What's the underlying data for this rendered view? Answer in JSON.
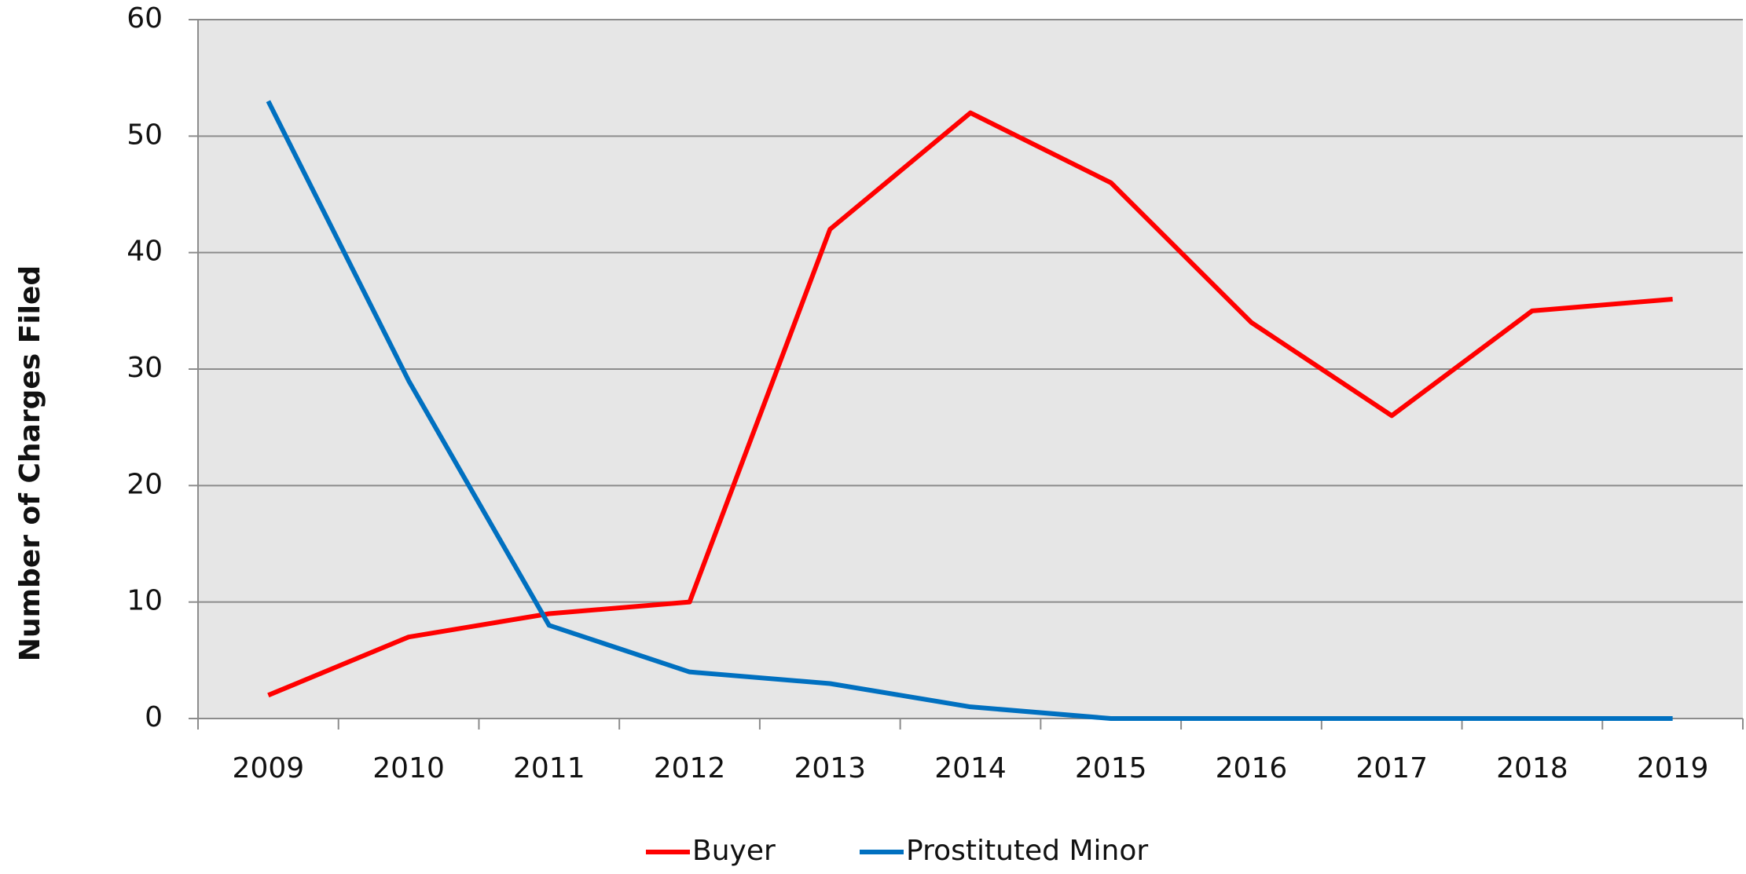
{
  "chart_data": {
    "type": "line",
    "y_label": "Number of Charges Filed",
    "categories": [
      "2009",
      "2010",
      "2011",
      "2012",
      "2013",
      "2014",
      "2015",
      "2016",
      "2017",
      "2018",
      "2019"
    ],
    "series": [
      {
        "name": "Buyer",
        "color": "#ff0000",
        "values": [
          2,
          7,
          9,
          10,
          42,
          52,
          46,
          34,
          26,
          35,
          36
        ]
      },
      {
        "name": "Prostituted Minor",
        "color": "#0070c0",
        "values": [
          53,
          29,
          8,
          4,
          3,
          1,
          0,
          0,
          0,
          0,
          0
        ]
      }
    ],
    "ylim": [
      0,
      60
    ],
    "yticks": [
      0,
      10,
      20,
      30,
      40,
      50,
      60
    ],
    "grid": true,
    "legend": "bottom"
  }
}
